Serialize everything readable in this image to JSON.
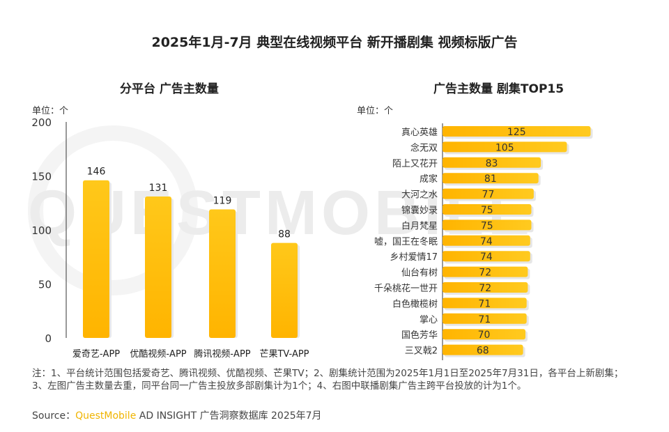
{
  "title": "2025年1月-7月 典型在线视频平台 新开播剧集 视频标版广告",
  "watermark": "QUESTMOBILE",
  "chart_data": [
    {
      "type": "bar",
      "title": "分平台 广告主数量",
      "unit_label": "单位：个",
      "categories": [
        "爱奇艺-APP",
        "优酷视频-APP",
        "腾讯视频-APP",
        "芒果TV-APP"
      ],
      "values": [
        146,
        131,
        119,
        88
      ],
      "ylim": [
        0,
        200
      ],
      "yticks": [
        0,
        50,
        100,
        150,
        200
      ],
      "grid": false,
      "color": "#ffc20e"
    },
    {
      "type": "bar",
      "orientation": "horizontal",
      "title": "广告主数量 剧集TOP15",
      "unit_label": "单位：个",
      "categories": [
        "真心英雄",
        "念无双",
        "陌上又花开",
        "成家",
        "大河之水",
        "锦囊妙录",
        "白月梵星",
        "嘘，国王在冬眠",
        "乡村爱情17",
        "仙台有树",
        "千朵桃花一世开",
        "白色橄榄树",
        "掌心",
        "国色芳华",
        "三叉戟2"
      ],
      "values": [
        125,
        105,
        83,
        81,
        77,
        75,
        75,
        74,
        74,
        72,
        72,
        71,
        71,
        70,
        68
      ],
      "grid": false,
      "color": "#ffc20e"
    }
  ],
  "notes": "注：1、平台统计范围包括爱奇艺、腾讯视频、优酷视频、芒果TV；2、剧集统计范围为2025年1月1日至2025年7月31日，各平台上新剧集；3、左图广告主数量去重，同平台同一广告主投放多部剧集计为1个；4、右图中联播剧集广告主跨平台投放的计为1个。",
  "source": {
    "prefix": "Source：",
    "brand": "QuestMobile",
    "rest": " AD INSIGHT 广告洞察数据库 2025年7月"
  }
}
